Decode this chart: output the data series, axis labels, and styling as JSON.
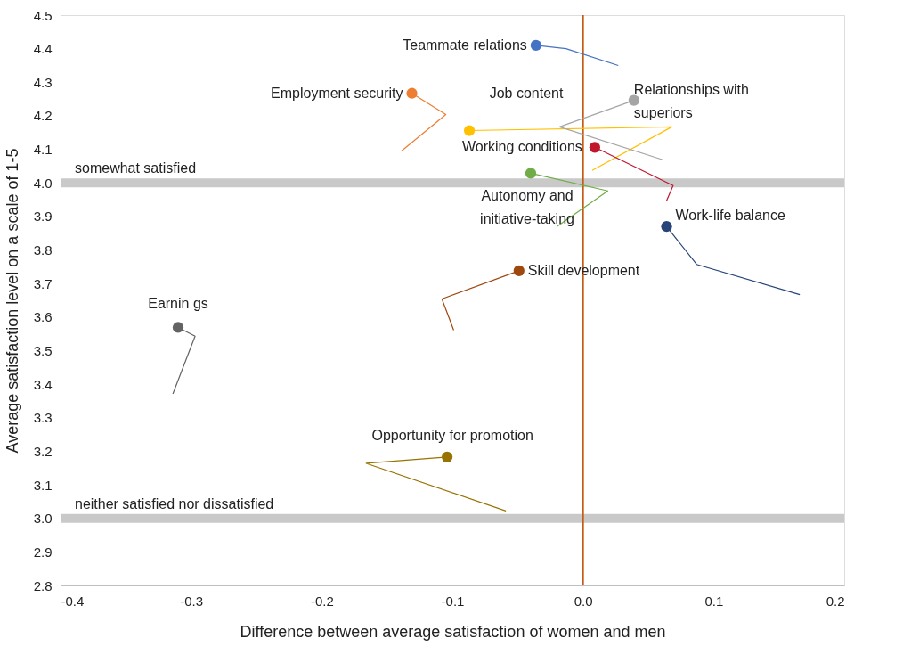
{
  "chart_data": {
    "type": "scatter",
    "xlabel": "Difference between average satisfaction of women and men",
    "ylabel": "Average satisfaction level on a scale of 1-5",
    "xlim": [
      -0.4,
      0.2
    ],
    "xticks": [
      -0.4,
      -0.3,
      -0.2,
      -0.1,
      {
        "value": 0,
        "label": "0.0"
      },
      0.1,
      0.2
    ],
    "ylim": [
      2.8,
      4.5
    ],
    "yticks": [
      2.8,
      2.9,
      {
        "value": 3,
        "label": "3.0"
      },
      3.1,
      3.2,
      3.3,
      3.4,
      3.5,
      3.6,
      3.7,
      3.8,
      3.9,
      {
        "value": 4,
        "label": "4.0"
      },
      4.1,
      4.2,
      4.3,
      4.4,
      4.5
    ],
    "grid": false,
    "marker": "circle",
    "ref_lines": [
      {
        "axis": "y",
        "value": 4,
        "label": "somewhat satisfied",
        "color": "#c9c9c9"
      },
      {
        "axis": "y",
        "value": 3,
        "label": "neither satisfied nor dissatisfied",
        "color": "#c9c9c9"
      },
      {
        "axis": "x",
        "value": 0,
        "color": "#c55a11"
      }
    ],
    "series": [
      {
        "type": "line",
        "marker": "none",
        "color": "#4472c4",
        "x": [
          0.027,
          -0.013,
          -0.036
        ],
        "values": [
          4.35,
          4.4,
          4.41
        ]
      },
      {
        "name": "Teammate relations",
        "color": "#4472c4",
        "x": [
          -0.036
        ],
        "values": [
          4.41
        ]
      },
      {
        "type": "line",
        "marker": "none",
        "color": "#ed7d31",
        "x": [
          -0.139,
          -0.105,
          -0.131
        ],
        "values": [
          4.095,
          4.204,
          4.267
        ]
      },
      {
        "name": "Employment security",
        "color": "#ed7d31",
        "x": [
          -0.131
        ],
        "values": [
          4.267
        ]
      },
      {
        "type": "line",
        "marker": "none",
        "color": "#ffc000",
        "x": [
          0.007,
          0.068,
          -0.087
        ],
        "values": [
          4.037,
          4.167,
          4.156
        ]
      },
      {
        "name": "Job content",
        "color": "#ffc000",
        "x": [
          -0.087
        ],
        "values": [
          4.156
        ]
      },
      {
        "type": "line",
        "marker": "none",
        "color": "#a5a5a5",
        "x": [
          0.061,
          -0.018,
          0.039
        ],
        "values": [
          4.069,
          4.167,
          4.246
        ]
      },
      {
        "name": "Relationships with superiors",
        "color": "#a5a5a5",
        "x": [
          0.039
        ],
        "values": [
          4.246
        ]
      },
      {
        "type": "line",
        "marker": "none",
        "color": "#c0172d",
        "x": [
          0.064,
          0.069,
          0.009
        ],
        "values": [
          3.947,
          3.992,
          4.106
        ]
      },
      {
        "name": "Working conditions",
        "color": "#c0172d",
        "x": [
          0.009
        ],
        "values": [
          4.106
        ]
      },
      {
        "type": "line",
        "marker": "none",
        "color": "#70ad47",
        "x": [
          -0.02,
          0.019,
          -0.04
        ],
        "values": [
          3.87,
          3.976,
          4.029
        ]
      },
      {
        "name": "Autonomy and initiative-taking",
        "color": "#70ad47",
        "x": [
          -0.04
        ],
        "values": [
          4.029
        ]
      },
      {
        "type": "line",
        "marker": "none",
        "color": "#264478",
        "x": [
          0.166,
          0.087,
          0.064
        ],
        "values": [
          3.667,
          3.757,
          3.87
        ]
      },
      {
        "name": "Work-life balance",
        "color": "#264478",
        "x": [
          0.064
        ],
        "values": [
          3.87
        ]
      },
      {
        "type": "line",
        "marker": "none",
        "color": "#9e480e",
        "x": [
          -0.099,
          -0.108,
          -0.049
        ],
        "values": [
          3.561,
          3.654,
          3.738
        ]
      },
      {
        "name": "Skill development",
        "color": "#9e480e",
        "x": [
          -0.049
        ],
        "values": [
          3.738
        ]
      },
      {
        "type": "line",
        "marker": "none",
        "color": "#636363",
        "x": [
          -0.314,
          -0.297,
          -0.31
        ],
        "values": [
          3.371,
          3.543,
          3.569
        ]
      },
      {
        "name": "Earnin gs",
        "color": "#636363",
        "x": [
          -0.31
        ],
        "values": [
          3.569
        ]
      },
      {
        "type": "line",
        "marker": "none",
        "color": "#997300",
        "x": [
          -0.059,
          -0.166,
          -0.104
        ],
        "values": [
          3.022,
          3.164,
          3.183
        ]
      },
      {
        "name": "Opportunity for promotion",
        "color": "#997300",
        "x": [
          -0.104
        ],
        "values": [
          3.183
        ]
      }
    ]
  }
}
